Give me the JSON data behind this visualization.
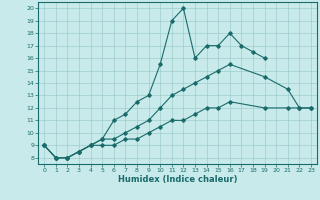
{
  "xlabel": "Humidex (Indice chaleur)",
  "ylabel": "",
  "bg_color": "#c8eaea",
  "line_color": "#1a6b6b",
  "grid_color": "#a0cccc",
  "xlim": [
    -0.5,
    23.5
  ],
  "ylim": [
    7.5,
    20.5
  ],
  "xticks": [
    0,
    1,
    2,
    3,
    4,
    5,
    6,
    7,
    8,
    9,
    10,
    11,
    12,
    13,
    14,
    15,
    16,
    17,
    18,
    19,
    20,
    21,
    22,
    23
  ],
  "yticks": [
    8,
    9,
    10,
    11,
    12,
    13,
    14,
    15,
    16,
    17,
    18,
    19,
    20
  ],
  "line1_x": [
    0,
    1,
    2,
    3,
    4,
    5,
    6,
    7,
    8,
    9,
    10,
    11,
    12,
    13,
    14,
    15,
    16,
    17,
    18,
    19
  ],
  "line1_y": [
    9,
    8,
    8,
    8.5,
    9,
    9.5,
    11,
    11.5,
    12.5,
    13,
    15.5,
    19,
    20,
    16,
    17,
    17,
    18,
    17,
    16.5,
    16
  ],
  "line2_x": [
    0,
    1,
    2,
    3,
    4,
    5,
    6,
    7,
    8,
    9,
    10,
    11,
    12,
    13,
    14,
    15,
    16,
    19,
    21,
    22,
    23
  ],
  "line2_y": [
    9,
    8,
    8,
    8.5,
    9,
    9.5,
    9.5,
    10,
    10.5,
    11,
    12,
    13,
    13.5,
    14,
    14.5,
    15,
    15.5,
    14.5,
    13.5,
    12,
    12
  ],
  "line3_x": [
    0,
    1,
    2,
    3,
    4,
    5,
    6,
    7,
    8,
    9,
    10,
    11,
    12,
    13,
    14,
    15,
    16,
    19,
    21,
    22,
    23
  ],
  "line3_y": [
    9,
    8,
    8,
    8.5,
    9,
    9,
    9,
    9.5,
    9.5,
    10,
    10.5,
    11,
    11,
    11.5,
    12,
    12,
    12.5,
    12,
    12,
    12,
    12
  ]
}
